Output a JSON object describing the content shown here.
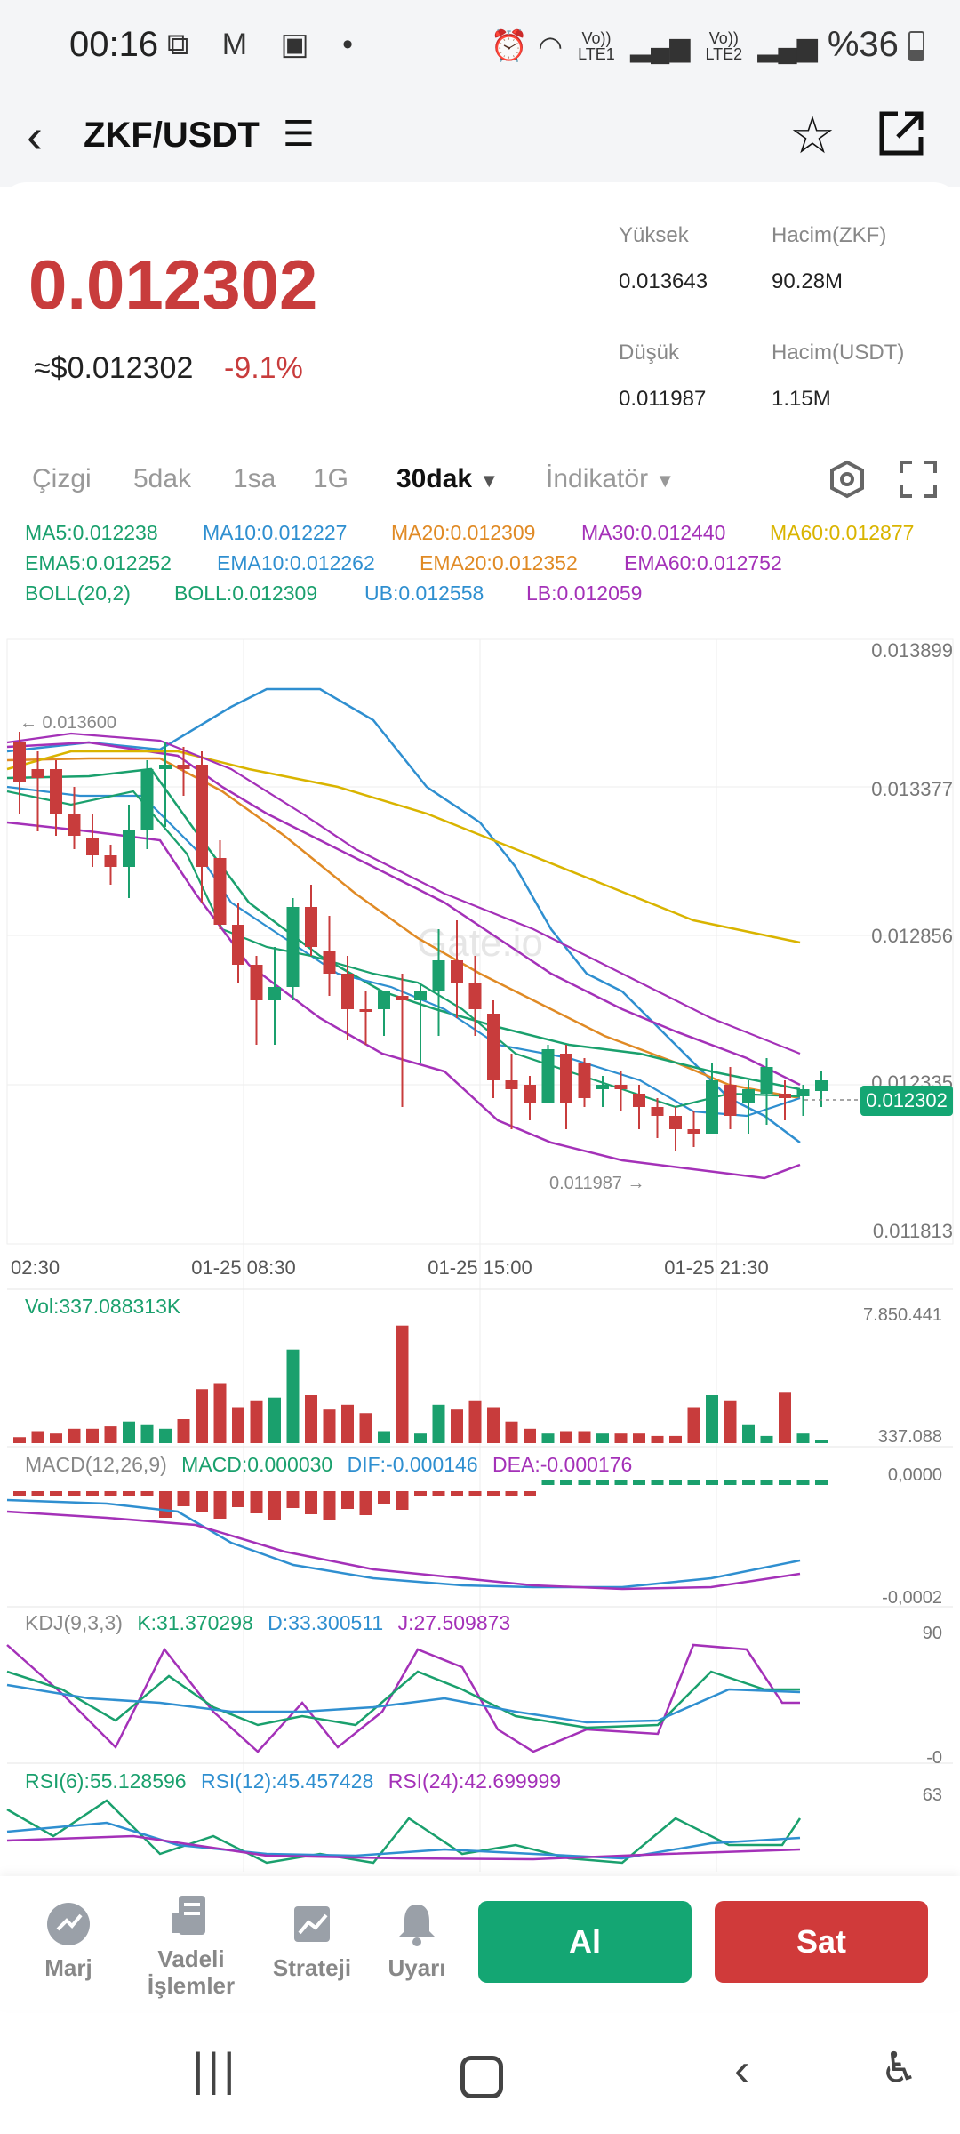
{
  "status_bar": {
    "time": "00:16",
    "icons": [
      "screenshot-icon",
      "gmail-icon",
      "image-icon",
      "dot-icon"
    ],
    "net1_top": "Vo))",
    "net1_bottom": "LTE1",
    "net2_top": "Vo))",
    "net2_bottom": "LTE2",
    "battery": "%36"
  },
  "header": {
    "pair": "ZKF/USDT",
    "menu_icon": "menu-icon",
    "favorite_icon": "star-icon",
    "share_icon": "share-icon"
  },
  "price": {
    "last": "0.012302",
    "usd": "≈$0.012302",
    "change": "-9.1%",
    "high_label": "Yüksek",
    "high_value": "0.013643",
    "low_label": "Düşük",
    "low_value": "0.011987",
    "vol_base_label": "Hacim(ZKF)",
    "vol_base_value": "90.28M",
    "vol_quote_label": "Hacim(USDT)",
    "vol_quote_value": "1.15M"
  },
  "tabs": {
    "items": [
      "Çizgi",
      "5dak",
      "1sa",
      "1G"
    ],
    "active": "30dak",
    "indicator": "İndikatör"
  },
  "ma_lines": {
    "ma": [
      {
        "label": "MA5:0.012238",
        "color": "#1aa06d"
      },
      {
        "label": "MA10:0.012227",
        "color": "#2f8fd0"
      },
      {
        "label": "MA20:0.012309",
        "color": "#e08a25"
      },
      {
        "label": "MA30:0.012440",
        "color": "#a431b8"
      },
      {
        "label": "MA60:0.012877",
        "color": "#d9b400"
      }
    ],
    "ema": [
      {
        "label": "EMA5:0.012252",
        "color": "#1aa06d"
      },
      {
        "label": "EMA10:0.012262",
        "color": "#2f8fd0"
      },
      {
        "label": "EMA20:0.012352",
        "color": "#e08a25"
      },
      {
        "label": "EMA60:0.012752",
        "color": "#a431b8"
      }
    ],
    "boll": [
      {
        "label": "BOLL(20,2)",
        "color": "#1aa06d"
      },
      {
        "label": "BOLL:0.012309",
        "color": "#1aa06d"
      },
      {
        "label": "UB:0.012558",
        "color": "#2f8fd0"
      },
      {
        "label": "LB:0.012059",
        "color": "#a431b8"
      }
    ]
  },
  "main_chart": {
    "y_ticks": [
      "0.013899",
      "0.013377",
      "0.012856",
      "0.012335",
      "0.011813"
    ],
    "x_ticks": [
      "02:30",
      "01-25 08:30",
      "01-25 15:00",
      "01-25 21:30"
    ],
    "high_marker": "← 0.013600",
    "low_marker": "0.011987 →",
    "current_price_tag": "0.012302",
    "watermark": "Gate.io"
  },
  "volume": {
    "label": "Vol:337.088313K",
    "max_tick": "7.850.441",
    "min_tick": "337.088"
  },
  "macd": {
    "title": "MACD(12,26,9)",
    "macd": "MACD:0.000030",
    "dif": "DIF:-0.000146",
    "dea": "DEA:-0.000176",
    "top_tick": "0,0000",
    "bottom_tick": "-0,0002"
  },
  "kdj": {
    "title": "KDJ(9,3,3)",
    "k": "K:31.370298",
    "d": "D:33.300511",
    "j": "J:27.509873",
    "top_tick": "90",
    "bottom_tick": "-0"
  },
  "rsi": {
    "r6": "RSI(6):55.128596",
    "r12": "RSI(12):45.457428",
    "r24": "RSI(24):42.699999",
    "top_tick": "63"
  },
  "bottom_nav": {
    "margin": "Marj",
    "futures_line1": "Vadeli",
    "futures_line2": "İşlemler",
    "strategy": "Strateji",
    "alert": "Uyarı",
    "buy": "Al",
    "sell": "Sat"
  },
  "colors": {
    "up": "#1aa06d",
    "down": "#c83c3c",
    "buy": "#14a673",
    "sell": "#d03a3a"
  }
}
